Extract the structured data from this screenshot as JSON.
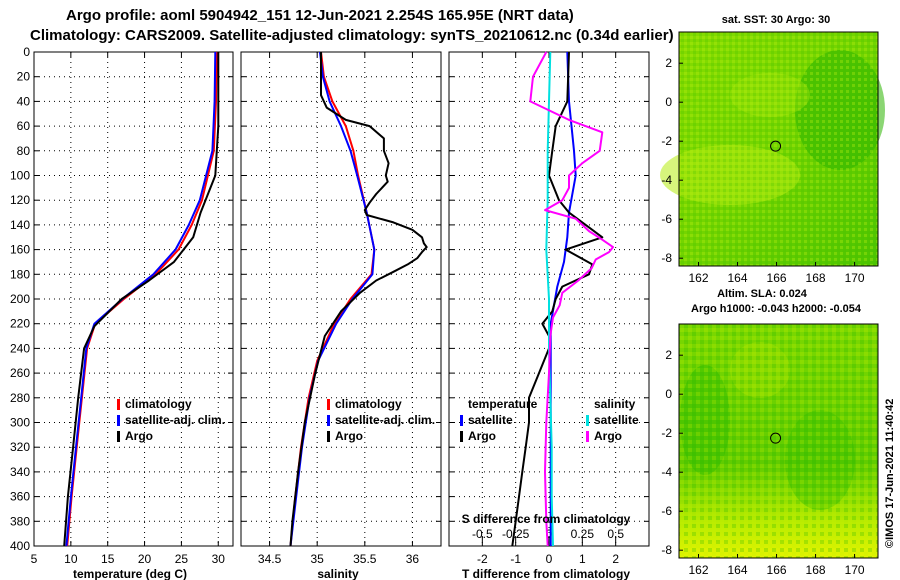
{
  "title": {
    "line1": "Argo profile: aoml 5904942_151 12-Jun-2021 2.254S 165.95E (NRT data)",
    "line2": "Climatology: CARS2009. Satellite-adjusted climatology: synTS_20210612.nc (0.34d earlier)"
  },
  "colors": {
    "climatology": "#ff0000",
    "satellite": "#0000ff",
    "argo": "#000000",
    "t_diff_satellite": "#0000ff",
    "s_diff_satellite": "#00e0e0",
    "s_diff_argo": "#ff00ff",
    "map_green_light": "#a4e600",
    "map_green_dark": "#00b400",
    "map_yellow": "#d8f000"
  },
  "chart_data": [
    {
      "type": "line",
      "panel": "temperature",
      "xlabel": "temperature (deg C)",
      "ylabel": "",
      "xlim": [
        5,
        32
      ],
      "ylim": [
        400,
        0
      ],
      "xticks": [
        5,
        10,
        15,
        20,
        25,
        30
      ],
      "yticks": [
        0,
        20,
        40,
        60,
        80,
        100,
        120,
        140,
        160,
        180,
        200,
        220,
        240,
        260,
        280,
        300,
        320,
        340,
        360,
        380,
        400
      ],
      "grid": true,
      "legend": [
        "climatology",
        "satellite-adj. clim.",
        "Argo"
      ],
      "series": [
        {
          "name": "climatology",
          "y": [
            0,
            40,
            80,
            120,
            140,
            160,
            180,
            200,
            220,
            240,
            280,
            320,
            360,
            400
          ],
          "values": [
            29.8,
            29.7,
            29.4,
            27.8,
            26.4,
            24.6,
            21.5,
            17.2,
            13.3,
            12.2,
            11.5,
            10.8,
            10.1,
            9.5
          ]
        },
        {
          "name": "satellite-adj. clim.",
          "y": [
            0,
            40,
            80,
            120,
            140,
            160,
            180,
            200,
            220,
            240,
            280,
            320,
            360,
            400
          ],
          "values": [
            29.6,
            29.5,
            29.2,
            27.5,
            26.0,
            24.2,
            21.2,
            17.0,
            13.2,
            12.1,
            11.4,
            10.7,
            10.0,
            9.4
          ]
        },
        {
          "name": "Argo",
          "y": [
            0,
            60,
            100,
            130,
            150,
            170,
            185,
            200,
            222,
            240,
            280,
            320,
            360,
            400
          ],
          "values": [
            30.0,
            30.0,
            29.6,
            27.6,
            26.6,
            24.0,
            20.6,
            16.9,
            13.2,
            11.8,
            11.0,
            10.3,
            9.6,
            9.1
          ]
        }
      ]
    },
    {
      "type": "line",
      "panel": "salinity",
      "xlabel": "salinity",
      "xlim": [
        34.2,
        36.3
      ],
      "ylim": [
        400,
        0
      ],
      "xticks": [
        34.5,
        35,
        35.5,
        36
      ],
      "grid": true,
      "legend": [
        "climatology",
        "satellite-adj. clim.",
        "Argo"
      ],
      "series": [
        {
          "name": "climatology",
          "y": [
            0,
            20,
            40,
            60,
            80,
            100,
            130,
            160,
            180,
            200,
            220,
            250,
            280,
            320,
            360,
            400
          ],
          "values": [
            35.04,
            35.07,
            35.16,
            35.3,
            35.38,
            35.43,
            35.52,
            35.6,
            35.57,
            35.35,
            35.18,
            35.0,
            34.91,
            34.83,
            34.77,
            34.72
          ]
        },
        {
          "name": "satellite-adj. clim.",
          "y": [
            0,
            20,
            40,
            60,
            80,
            100,
            130,
            160,
            180,
            200,
            220,
            250,
            280,
            320,
            360,
            400
          ],
          "values": [
            35.03,
            35.06,
            35.13,
            35.25,
            35.35,
            35.42,
            35.52,
            35.6,
            35.58,
            35.37,
            35.2,
            35.01,
            34.92,
            34.84,
            34.78,
            34.72
          ]
        },
        {
          "name": "Argo",
          "y": [
            0,
            35,
            45,
            55,
            60,
            70,
            80,
            90,
            100,
            105,
            115,
            122,
            128,
            132,
            138,
            144,
            150,
            155,
            158,
            162,
            167,
            172,
            178,
            185,
            195,
            210,
            230,
            260,
            300,
            340,
            380,
            400
          ],
          "values": [
            35.04,
            35.04,
            35.1,
            35.3,
            35.55,
            35.7,
            35.7,
            35.75,
            35.72,
            35.74,
            35.62,
            35.55,
            35.5,
            35.52,
            35.8,
            36.0,
            36.1,
            36.12,
            36.15,
            36.1,
            36.05,
            35.95,
            35.8,
            35.62,
            35.45,
            35.25,
            35.08,
            34.98,
            34.87,
            34.8,
            34.74,
            34.72
          ]
        }
      ]
    },
    {
      "type": "line",
      "panel": "difference",
      "xlabel": "T difference from climatology",
      "x2label": "S difference from climatology",
      "xlim": [
        -3,
        3
      ],
      "x2lim": [
        -0.75,
        0.75
      ],
      "ylim": [
        400,
        0
      ],
      "xticks": [
        -2,
        -1,
        0,
        1,
        2
      ],
      "x2ticks": [
        -0.5,
        -0.25,
        0,
        0.25,
        0.5
      ],
      "grid": true,
      "legend_temperature": {
        "title": "temperature",
        "entries": [
          "satellite",
          "Argo"
        ]
      },
      "legend_salinity": {
        "title": "salinity",
        "entries": [
          "satellite",
          "Argo"
        ]
      },
      "series": [
        {
          "name": "temperature satellite",
          "axis": "T",
          "y": [
            0,
            40,
            80,
            100,
            130,
            150,
            170,
            190,
            220,
            260,
            320,
            400
          ],
          "values": [
            0.55,
            0.6,
            0.75,
            0.8,
            0.6,
            0.55,
            0.45,
            0.25,
            0.05,
            0.05,
            0.05,
            0.05
          ]
        },
        {
          "name": "temperature Argo",
          "axis": "T",
          "y": [
            0,
            40,
            60,
            80,
            100,
            120,
            130,
            140,
            150,
            160,
            172,
            180,
            190,
            200,
            210,
            220,
            230,
            240,
            260,
            280,
            300,
            320,
            340,
            360,
            380,
            400
          ],
          "values": [
            0.6,
            0.55,
            0.2,
            0.1,
            0.0,
            0.3,
            0.6,
            1.1,
            1.6,
            0.5,
            1.3,
            1.2,
            0.4,
            0.2,
            0.1,
            -0.2,
            0.0,
            0.0,
            -0.3,
            -0.6,
            -0.6,
            -0.7,
            -0.8,
            -0.9,
            -1.0,
            -1.1
          ]
        },
        {
          "name": "salinity satellite",
          "axis": "S",
          "y": [
            0,
            40,
            80,
            120,
            160,
            200,
            240,
            280,
            320,
            360,
            400
          ],
          "values": [
            0.01,
            0.0,
            -0.01,
            -0.01,
            -0.02,
            0.0,
            0.0,
            0.01,
            0.02,
            0.02,
            0.03
          ]
        },
        {
          "name": "salinity Argo",
          "axis": "S",
          "y": [
            0,
            20,
            40,
            55,
            65,
            80,
            90,
            100,
            110,
            120,
            128,
            135,
            145,
            152,
            158,
            162,
            168,
            175,
            185,
            195,
            205,
            215,
            230,
            260,
            300,
            340,
            380,
            400
          ],
          "values": [
            -0.02,
            -0.12,
            -0.14,
            0.15,
            0.4,
            0.38,
            0.25,
            0.15,
            0.15,
            0.1,
            -0.03,
            0.2,
            0.3,
            0.4,
            0.48,
            0.45,
            0.35,
            0.32,
            0.22,
            0.1,
            0.08,
            0.03,
            0.01,
            0.0,
            -0.02,
            -0.03,
            -0.02,
            -0.01
          ]
        }
      ]
    },
    {
      "type": "heatmap",
      "panel": "sst-map",
      "title": "sat. SST: 30 Argo: 30",
      "xticks": [
        162,
        164,
        166,
        168,
        170
      ],
      "yticks": [
        2,
        0,
        -2,
        -4,
        -6,
        -8
      ],
      "xlim": [
        161,
        171.2
      ],
      "ylim": [
        -8.4,
        3.6
      ],
      "marker": {
        "lon": 165.95,
        "lat": -2.254
      }
    },
    {
      "type": "heatmap",
      "panel": "sla-map",
      "title_line1": "Altim. SLA: 0.024",
      "title_line2": "Argo h1000: -0.043 h2000: -0.054",
      "xticks": [
        162,
        164,
        166,
        168,
        170
      ],
      "yticks": [
        2,
        0,
        -2,
        -4,
        -6,
        -8
      ],
      "xlim": [
        161,
        171.2
      ],
      "ylim": [
        -8.4,
        3.6
      ],
      "marker": {
        "lon": 165.95,
        "lat": -2.254
      }
    }
  ],
  "credit": "©IMOS 17-Jun-2021 11:40:42"
}
